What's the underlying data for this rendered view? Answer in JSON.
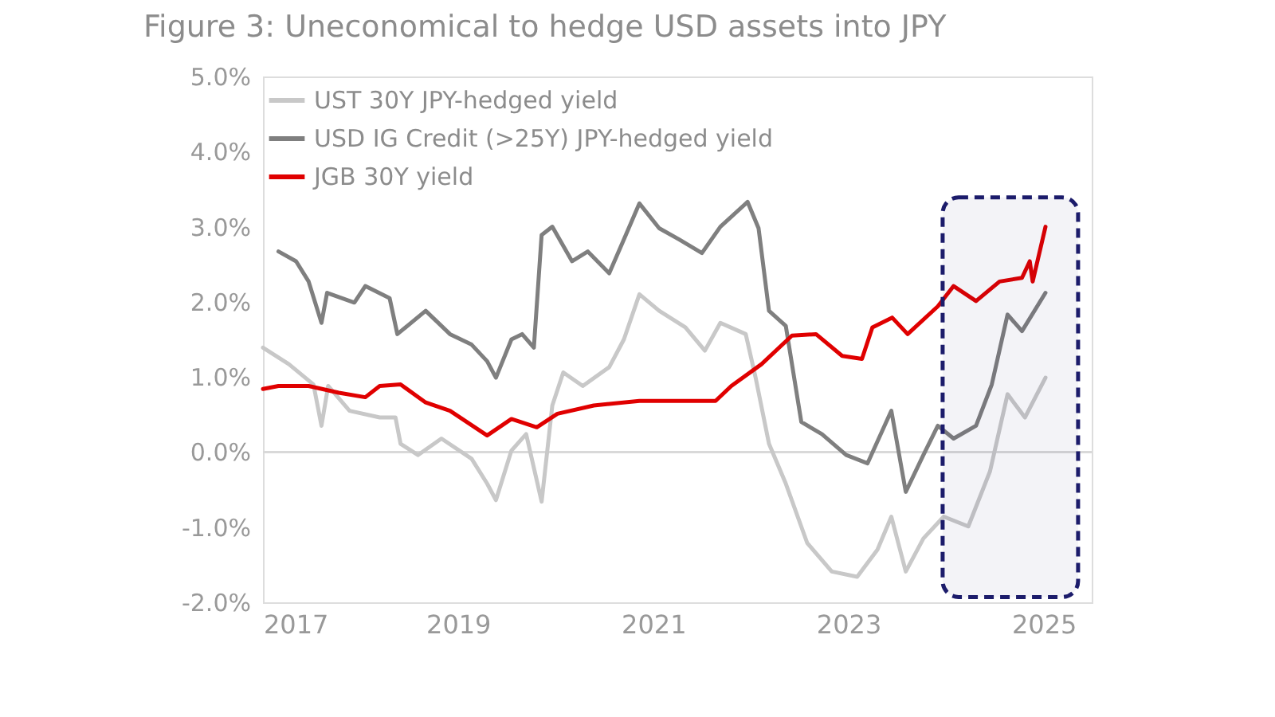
{
  "chart_data": {
    "type": "line",
    "title": "Figure 3:  Uneconomical to hedge USD assets into JPY",
    "xlim": [
      "2017-01-01",
      "2025-06-30"
    ],
    "xticks": [
      {
        "value": "2017-01-01",
        "label": "2017"
      },
      {
        "value": "2019-01-01",
        "label": "2019"
      },
      {
        "value": "2021-01-01",
        "label": "2021"
      },
      {
        "value": "2023-01-01",
        "label": "2023"
      },
      {
        "value": "2025-01-01",
        "label": "2025"
      }
    ],
    "ylim": [
      -2,
      5
    ],
    "yticks": [
      {
        "value": -2,
        "label": "-2.0%"
      },
      {
        "value": -1,
        "label": "-1.0%"
      },
      {
        "value": 0,
        "label": "0.0%"
      },
      {
        "value": 1,
        "label": "1.0%"
      },
      {
        "value": 2,
        "label": "2.0%"
      },
      {
        "value": 3,
        "label": "3.0%"
      },
      {
        "value": 4,
        "label": "4.0%"
      },
      {
        "value": 5,
        "label": "5.0%"
      }
    ],
    "grid": false,
    "legend": "top left",
    "line_style": "solid",
    "marker": "none",
    "ref_lines": [
      {
        "axis": "y",
        "value": 0,
        "label": null,
        "color": "#d9d9d9"
      }
    ],
    "bands": [
      {
        "axis": "x",
        "from": "2023-12-20",
        "to": "2025-05-10",
        "label": null,
        "color": "#1c1c6b"
      }
    ],
    "series": [
      {
        "name": "UST 30Y JPY-hedged yield",
        "color": "#c8c8c8",
        "x": [
          "2017-01-01",
          "2017-04-08",
          "2017-07-09",
          "2017-08-08",
          "2017-09-02",
          "2017-11-21",
          "2018-03-14",
          "2018-05-12",
          "2018-05-31",
          "2018-08-04",
          "2018-10-31",
          "2019-02-21",
          "2019-04-20",
          "2019-05-23",
          "2019-07-20",
          "2019-09-13",
          "2019-11-10",
          "2019-12-20",
          "2020-01-30",
          "2020-04-12",
          "2020-07-20",
          "2020-09-13",
          "2020-11-10",
          "2021-01-23",
          "2021-05-01",
          "2021-07-13",
          "2021-09-09",
          "2021-12-13",
          "2022-01-19",
          "2022-03-10",
          "2022-05-12",
          "2022-07-31",
          "2022-10-31",
          "2023-02-03",
          "2023-04-20",
          "2023-06-11",
          "2023-08-04",
          "2023-10-09",
          "2023-12-24",
          "2024-03-25",
          "2024-06-14",
          "2024-08-19",
          "2024-10-23",
          "2025-01-08"
        ],
        "values": [
          1.39,
          1.17,
          0.9,
          0.35,
          0.88,
          0.55,
          0.46,
          0.46,
          0.11,
          -0.04,
          0.18,
          -0.09,
          -0.42,
          -0.64,
          0.02,
          0.24,
          -0.66,
          0.62,
          1.06,
          0.88,
          1.13,
          1.5,
          2.1,
          1.88,
          1.66,
          1.35,
          1.72,
          1.57,
          0.99,
          0.11,
          -0.42,
          -1.21,
          -1.59,
          -1.66,
          -1.3,
          -0.86,
          -1.59,
          -1.15,
          -0.86,
          -0.99,
          -0.26,
          0.77,
          0.46,
          0.99
        ]
      },
      {
        "name": "USD IG Credit (>25Y) JPY-hedged yield",
        "color": "#7f7f7f",
        "x": [
          "2017-02-28",
          "2017-05-05",
          "2017-06-21",
          "2017-08-08",
          "2017-08-29",
          "2017-12-09",
          "2018-01-19",
          "2018-04-20",
          "2018-05-19",
          "2018-09-02",
          "2018-12-02",
          "2019-02-21",
          "2019-04-20",
          "2019-05-23",
          "2019-07-20",
          "2019-08-29",
          "2019-10-12",
          "2019-11-10",
          "2019-12-20",
          "2020-03-03",
          "2020-05-01",
          "2020-07-20",
          "2020-09-13",
          "2020-11-10",
          "2021-01-23",
          "2021-04-08",
          "2021-07-02",
          "2021-09-09",
          "2021-12-20",
          "2022-01-30",
          "2022-03-10",
          "2022-05-12",
          "2022-07-09",
          "2022-09-24",
          "2022-12-24",
          "2023-03-14",
          "2023-06-11",
          "2023-08-04",
          "2023-10-09",
          "2023-12-02",
          "2024-01-30",
          "2024-04-23",
          "2024-06-21",
          "2024-08-19",
          "2024-10-12",
          "2025-01-08"
        ],
        "values": [
          2.67,
          2.54,
          2.27,
          1.72,
          2.12,
          1.99,
          2.21,
          2.05,
          1.57,
          1.88,
          1.57,
          1.43,
          1.21,
          0.99,
          1.5,
          1.57,
          1.39,
          2.89,
          3.0,
          2.54,
          2.67,
          2.38,
          2.83,
          3.31,
          2.98,
          2.83,
          2.65,
          3.0,
          3.33,
          2.98,
          1.88,
          1.68,
          0.4,
          0.24,
          -0.04,
          -0.15,
          0.55,
          -0.53,
          -0.04,
          0.35,
          0.18,
          0.35,
          0.9,
          1.83,
          1.61,
          2.12
        ]
      },
      {
        "name": "JGB 30Y yield",
        "color": "#e00000",
        "x": [
          "2017-01-01",
          "2017-02-28",
          "2017-06-21",
          "2017-10-12",
          "2018-01-19",
          "2018-03-14",
          "2018-05-31",
          "2018-09-02",
          "2018-12-02",
          "2019-04-20",
          "2019-07-20",
          "2019-10-23",
          "2020-01-08",
          "2020-05-23",
          "2020-11-10",
          "2021-08-22",
          "2021-10-20",
          "2022-02-10",
          "2022-06-04",
          "2022-09-02",
          "2022-12-09",
          "2023-02-21",
          "2023-04-01",
          "2023-06-14",
          "2023-08-11",
          "2023-12-02",
          "2024-01-30",
          "2024-04-23",
          "2024-07-20",
          "2024-10-12",
          "2024-11-10",
          "2024-11-21",
          "2025-01-08"
        ],
        "values": [
          0.84,
          0.88,
          0.88,
          0.79,
          0.73,
          0.88,
          0.9,
          0.66,
          0.55,
          0.22,
          0.44,
          0.33,
          0.51,
          0.62,
          0.68,
          0.68,
          0.88,
          1.17,
          1.55,
          1.57,
          1.28,
          1.24,
          1.66,
          1.79,
          1.57,
          1.94,
          2.21,
          2.01,
          2.27,
          2.32,
          2.54,
          2.27,
          3.0
        ]
      }
    ]
  }
}
